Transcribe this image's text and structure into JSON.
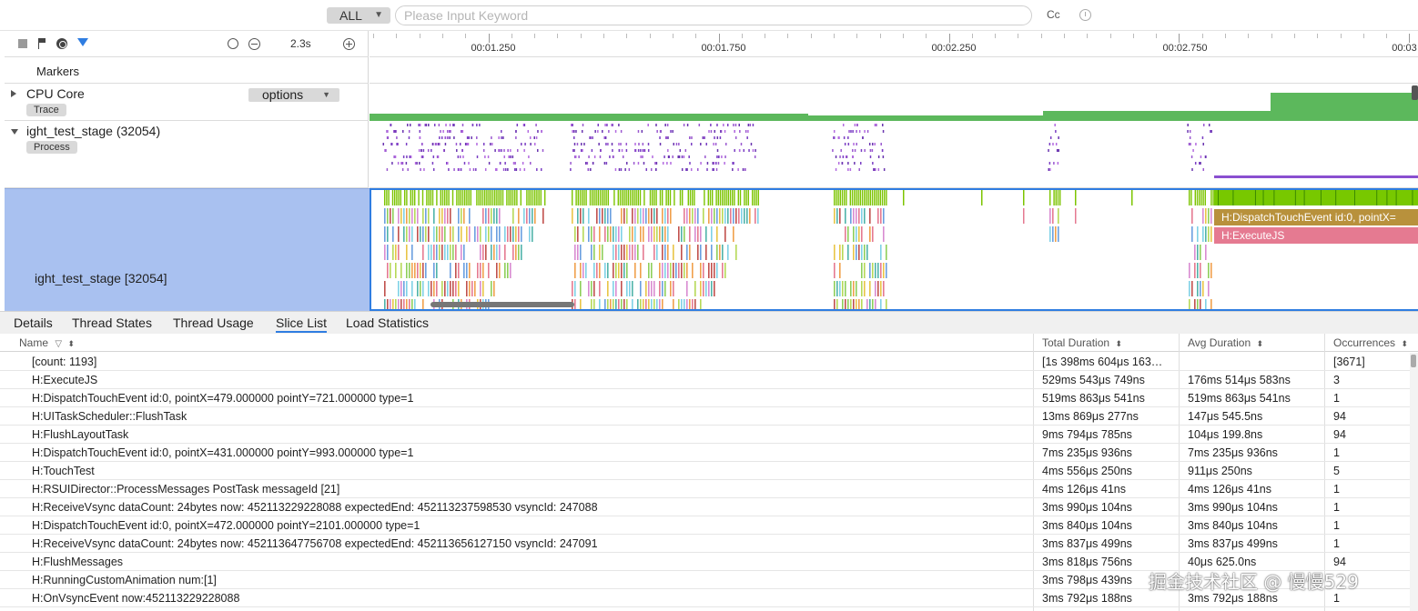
{
  "search": {
    "scope_value": "ALL",
    "placeholder": "Please Input Keyword",
    "case_toggle_label": "Cc"
  },
  "toolbar": {
    "zoom_level": "2.3s"
  },
  "ruler": {
    "ticks": [
      {
        "label": "00:01.250"
      },
      {
        "label": "00:01.750"
      },
      {
        "label": "00:02.250"
      },
      {
        "label": "00:02.750"
      },
      {
        "label": "00:03"
      }
    ]
  },
  "rows": {
    "markers": {
      "label": "Markers"
    },
    "cpu": {
      "title": "CPU Core",
      "tag": "Trace",
      "options_value": "options"
    },
    "process": {
      "title": "ight_test_stage (32054)",
      "tag": "Process"
    },
    "thread": {
      "title": "ight_test_stage [32054]"
    }
  },
  "slices": {
    "dispatch": "H:DispatchTouchEvent id:0, pointX=",
    "execute": "H:ExecuteJS"
  },
  "tabs": [
    {
      "label": "Details"
    },
    {
      "label": "Thread States"
    },
    {
      "label": "Thread Usage"
    },
    {
      "label": "Slice List"
    },
    {
      "label": "Load Statistics"
    }
  ],
  "table": {
    "columns": {
      "name": "Name",
      "total": "Total Duration",
      "avg": "Avg Duration",
      "occ": "Occurrences"
    },
    "rows": [
      {
        "name": "[count: 1193]",
        "total": "[1s 398ms 604μs 163…",
        "avg": "",
        "occ": "[3671]"
      },
      {
        "name": "H:ExecuteJS",
        "total": "529ms 543μs 749ns",
        "avg": "176ms 514μs 583ns",
        "occ": "3"
      },
      {
        "name": "H:DispatchTouchEvent id:0, pointX=479.000000 pointY=721.000000 type=1",
        "total": "519ms 863μs 541ns",
        "avg": "519ms 863μs 541ns",
        "occ": "1"
      },
      {
        "name": "H:UITaskScheduler::FlushTask",
        "total": "13ms 869μs 277ns",
        "avg": "147μs 545.5ns",
        "occ": "94"
      },
      {
        "name": "H:FlushLayoutTask",
        "total": "9ms 794μs 785ns",
        "avg": "104μs 199.8ns",
        "occ": "94"
      },
      {
        "name": "H:DispatchTouchEvent id:0, pointX=431.000000 pointY=993.000000 type=1",
        "total": "7ms 235μs 936ns",
        "avg": "7ms 235μs 936ns",
        "occ": "1"
      },
      {
        "name": "H:TouchTest",
        "total": "4ms 556μs 250ns",
        "avg": "911μs 250ns",
        "occ": "5"
      },
      {
        "name": "H:RSUIDirector::ProcessMessages PostTask messageId [21]",
        "total": "4ms 126μs 41ns",
        "avg": "4ms 126μs 41ns",
        "occ": "1"
      },
      {
        "name": "H:ReceiveVsync dataCount: 24bytes now: 452113229228088 expectedEnd: 452113237598530 vsyncId: 247088",
        "total": "3ms 990μs 104ns",
        "avg": "3ms 990μs 104ns",
        "occ": "1"
      },
      {
        "name": "H:DispatchTouchEvent id:0, pointX=472.000000 pointY=2101.000000 type=1",
        "total": "3ms 840μs 104ns",
        "avg": "3ms 840μs 104ns",
        "occ": "1"
      },
      {
        "name": "H:ReceiveVsync dataCount: 24bytes now: 452113647756708 expectedEnd: 452113656127150 vsyncId: 247091",
        "total": "3ms 837μs 499ns",
        "avg": "3ms 837μs 499ns",
        "occ": "1"
      },
      {
        "name": "H:FlushMessages",
        "total": "3ms 818μs 756ns",
        "avg": "40μs 625.0ns",
        "occ": "94"
      },
      {
        "name": "H:RunningCustomAnimation num:[1]",
        "total": "3ms 798μs 439ns",
        "avg": "",
        "occ": ""
      },
      {
        "name": "H:OnVsyncEvent now:452113229228088",
        "total": "3ms 792μs 188ns",
        "avg": "3ms 792μs 188ns",
        "occ": "1"
      }
    ]
  },
  "watermark": "掘金技术社区 @ 慢慢529",
  "colors": {
    "accent": "#2f7de1",
    "cpu_green": "#5cb85c",
    "thread_selected_bg": "#a9c1f0",
    "slice_dispatch": "#b8913c",
    "slice_execute": "#e57a91"
  }
}
